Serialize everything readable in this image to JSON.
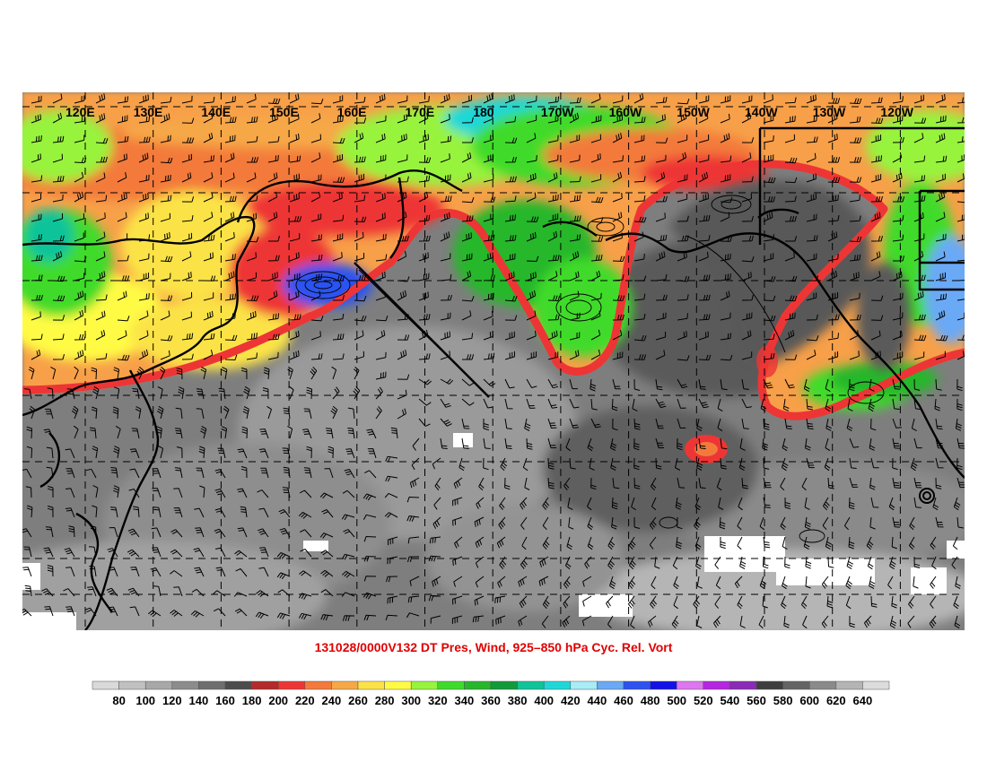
{
  "title": "131028/0000V132 DT Pres, Wind, 925–850 hPa Cyc. Rel. Vort",
  "longitude_labels": [
    "120E",
    "130E",
    "140E",
    "150E",
    "160E",
    "170E",
    "180",
    "170W",
    "160W",
    "150W",
    "140W",
    "130W",
    "120W"
  ],
  "colorbar": {
    "labels": [
      "80",
      "100",
      "120",
      "140",
      "160",
      "180",
      "200",
      "220",
      "240",
      "260",
      "280",
      "300",
      "320",
      "340",
      "360",
      "380",
      "400",
      "420",
      "440",
      "460",
      "480",
      "500",
      "520",
      "540",
      "560",
      "580",
      "600",
      "620",
      "640"
    ],
    "colors": [
      "#d9d9d9",
      "#c0c0c0",
      "#a8a8a8",
      "#8c8c8c",
      "#6e6e6e",
      "#4c4c4c",
      "#b52a2a",
      "#ee3535",
      "#f37a3a",
      "#f6a847",
      "#fbe347",
      "#fffb45",
      "#98f33d",
      "#3fdb2c",
      "#26b72a",
      "#129a3a",
      "#10c49a",
      "#1ed8d8",
      "#a9ecf6",
      "#6aa9f6",
      "#2c52f0",
      "#1212e8",
      "#dd76f0",
      "#b527e0",
      "#8a2ab7",
      "#3e3e3e",
      "#646464",
      "#8a8a8a",
      "#b4b4b4",
      "#dcdcdc"
    ]
  },
  "legend_colors": {
    "polar": "#f37a3a",
    "tropical_gray": "#8c8c8c",
    "title_red": "#e00000"
  }
}
